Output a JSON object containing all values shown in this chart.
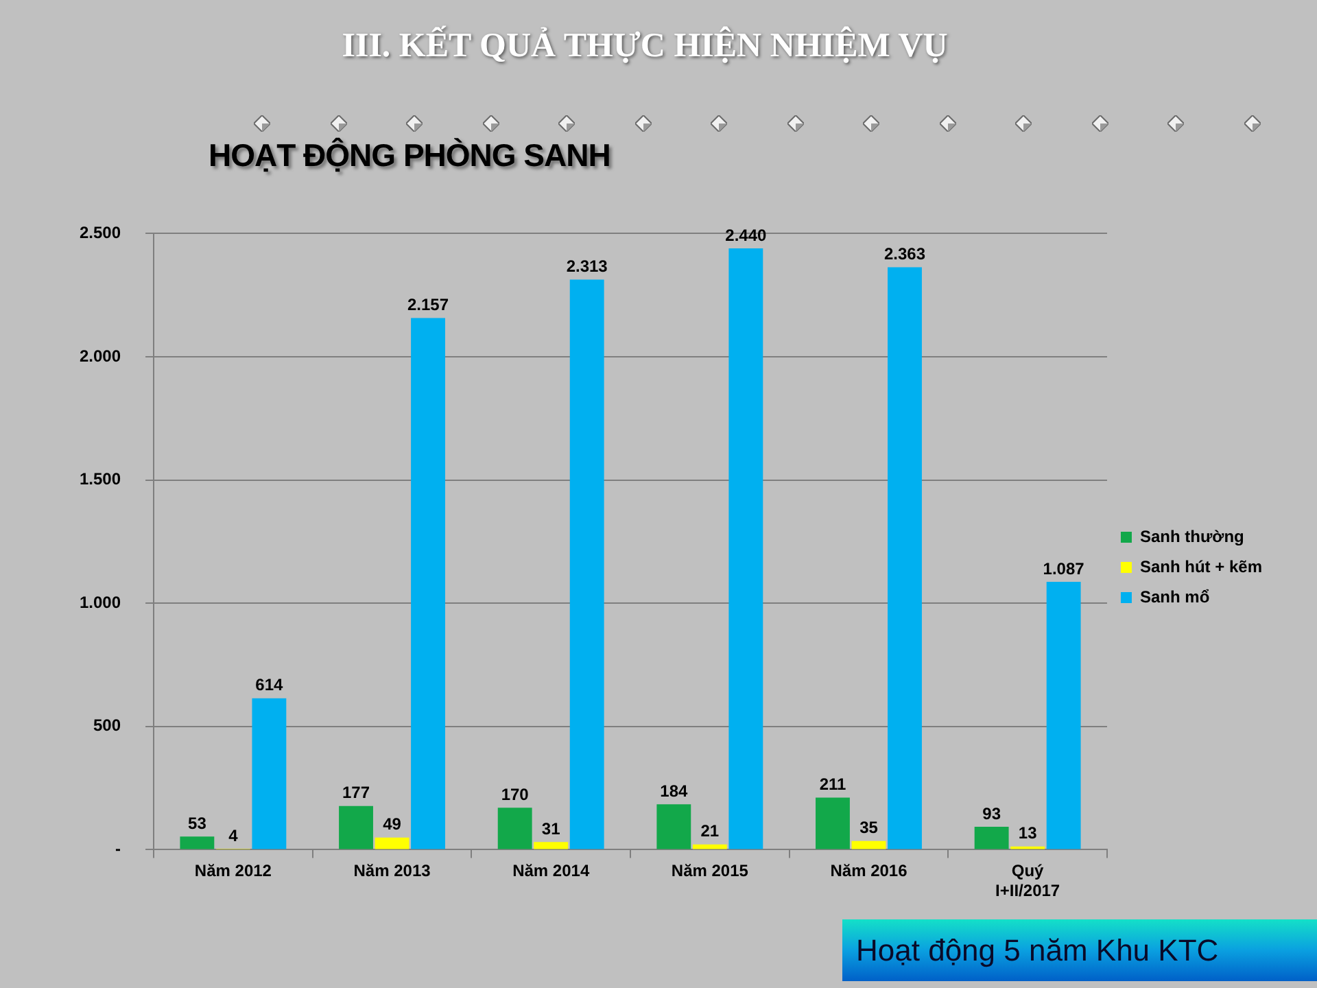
{
  "chart_data": {
    "type": "bar",
    "title": "III. KẾT QUẢ THỰC HIỆN NHIỆM VỤ",
    "subtitle": "HOẠT ĐỘNG PHÒNG SANH",
    "categories": [
      "Năm 2012",
      "Năm 2013",
      "Năm 2014",
      "Năm 2015",
      "Năm 2016",
      "Quý I+II/2017"
    ],
    "series": [
      {
        "name": "Sanh thường",
        "color": "#12a84a",
        "values": [
          53,
          177,
          170,
          184,
          211,
          93
        ],
        "value_labels": [
          "53",
          "177",
          "170",
          "184",
          "211",
          "93"
        ]
      },
      {
        "name": "Sanh hút + kẽm",
        "color": "#ffff00",
        "values": [
          4,
          49,
          31,
          21,
          35,
          13
        ],
        "value_labels": [
          "4",
          "49",
          "31",
          "21",
          "35",
          "13"
        ]
      },
      {
        "name": "Sanh mổ",
        "color": "#00b0f0",
        "values": [
          614,
          2157,
          2313,
          2440,
          2363,
          1087
        ],
        "value_labels": [
          "614",
          "2.157",
          "2.313",
          "2.440",
          "2.363",
          "1.087"
        ]
      }
    ],
    "ylim": [
      0,
      2500
    ],
    "yticks": [
      {
        "value": 0,
        "label": "-"
      },
      500,
      {
        "value": 1000,
        "label": "1.000"
      },
      {
        "value": 1500,
        "label": "1.500"
      },
      {
        "value": 2000,
        "label": "2.000"
      },
      {
        "value": 2500,
        "label": "2.500"
      }
    ],
    "grid": "y",
    "legend": "right",
    "annotations": [
      "Hoạt động 5 năm Khu KTC"
    ]
  }
}
